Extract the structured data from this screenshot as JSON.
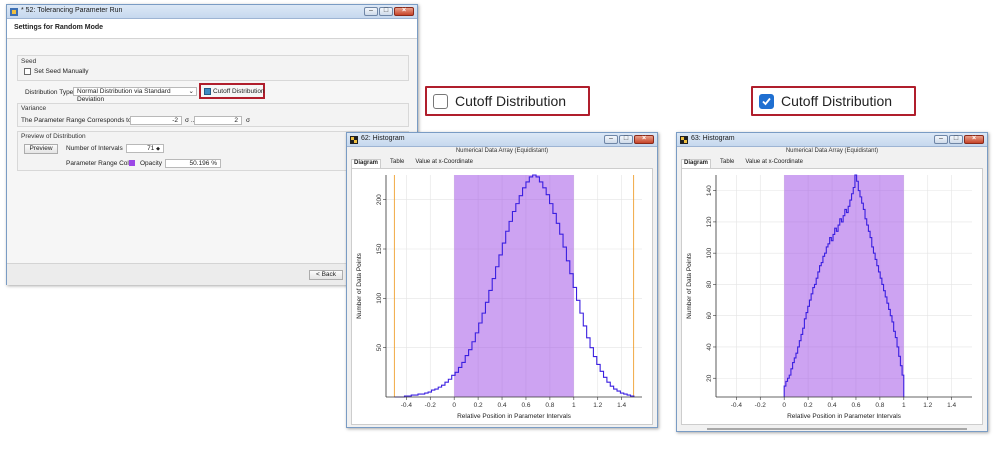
{
  "settings": {
    "title": "* 52: Tolerancing Parameter Run",
    "subtitle": "Settings for Random Mode",
    "seed": {
      "group_label": "Seed",
      "checkbox_label": "Set Seed Manually"
    },
    "distribution": {
      "label": "Distribution Type",
      "value": "Normal Distribution via Standard Deviation",
      "cutoff_label": "Cutoff Distribution"
    },
    "variance": {
      "group_label": "Variance",
      "range_label": "The Parameter Range Corresponds to:",
      "low_value": "-2",
      "sigma_to": "σ ...",
      "high_value": "2",
      "sigma": "σ"
    },
    "preview": {
      "group_label": "Preview of Distribution",
      "button_label": "Preview",
      "intervals_label": "Number of Intervals",
      "intervals_value": "71",
      "color_label": "Parameter Range Color",
      "color_hex": "#9b47e6",
      "opacity_label": "Opacity",
      "opacity_value": "50.196 %"
    },
    "back_button": "< Back"
  },
  "callout_unchecked": {
    "label": "Cutoff Distribution",
    "checked": false
  },
  "callout_checked": {
    "label": "Cutoff Distribution",
    "checked": true
  },
  "hist1": {
    "title": "62: Histogram",
    "subtitle": "Numerical Data Array (Equidistant)",
    "tabs": [
      "Diagram",
      "Table",
      "Value at x-Coordinate"
    ]
  },
  "hist2": {
    "title": "63: Histogram",
    "subtitle": "Numerical Data Array (Equidistant)",
    "tabs": [
      "Diagram",
      "Table",
      "Value at x-Coordinate"
    ]
  },
  "chart_data": [
    {
      "type": "histogram",
      "xlabel": "Relative Position in Parameter Intervals",
      "ylabel": "Number of Data Points",
      "xlim": [
        -0.57,
        1.57
      ],
      "ylim": [
        0,
        225
      ],
      "xticks": [
        "-0.4",
        "-0.2",
        "0",
        "0.2",
        "0.4",
        "0.6",
        "0.8",
        "1",
        "1.2",
        "1.4"
      ],
      "yticks": [
        "50",
        "100",
        "150",
        "200"
      ],
      "shaded_range": [
        0,
        1
      ],
      "cutoff_lines": [
        -0.5,
        1.5
      ],
      "bin_edges_start": -0.5,
      "bin_width": 0.0282,
      "values": [
        0,
        0,
        0,
        1,
        1,
        2,
        2,
        3,
        3,
        4,
        5,
        7,
        8,
        10,
        12,
        15,
        18,
        22,
        25,
        30,
        35,
        42,
        48,
        56,
        65,
        75,
        85,
        96,
        108,
        120,
        132,
        144,
        156,
        168,
        178,
        188,
        196,
        204,
        212,
        218,
        223,
        225,
        223,
        218,
        212,
        205,
        196,
        186,
        176,
        165,
        152,
        138,
        125,
        111,
        98,
        85,
        72,
        60,
        50,
        41,
        33,
        26,
        20,
        15,
        11,
        8,
        6,
        4,
        3,
        2,
        1
      ]
    },
    {
      "type": "histogram",
      "xlabel": "Relative Position in Parameter Intervals",
      "ylabel": "Number of Data Points",
      "xlim": [
        -0.57,
        1.57
      ],
      "ylim": [
        8,
        150
      ],
      "xticks": [
        "-0.4",
        "-0.2",
        "0",
        "0.2",
        "0.4",
        "0.6",
        "0.8",
        "1",
        "1.2",
        "1.4"
      ],
      "yticks": [
        "20",
        "40",
        "60",
        "80",
        "100",
        "120",
        "140"
      ],
      "shaded_range": [
        0,
        1
      ],
      "bin_edges_start": 0,
      "bin_width": 0.01408,
      "values": [
        15,
        18,
        20,
        22,
        26,
        30,
        33,
        36,
        40,
        44,
        48,
        52,
        58,
        62,
        66,
        70,
        74,
        78,
        80,
        84,
        88,
        92,
        94,
        98,
        100,
        104,
        106,
        110,
        108,
        112,
        116,
        114,
        118,
        122,
        120,
        124,
        128,
        126,
        130,
        134,
        138,
        142,
        150,
        146,
        140,
        136,
        132,
        128,
        122,
        118,
        114,
        110,
        104,
        100,
        96,
        92,
        88,
        84,
        80,
        76,
        72,
        68,
        64,
        60,
        56,
        50,
        46,
        40,
        34,
        28,
        22
      ]
    }
  ]
}
